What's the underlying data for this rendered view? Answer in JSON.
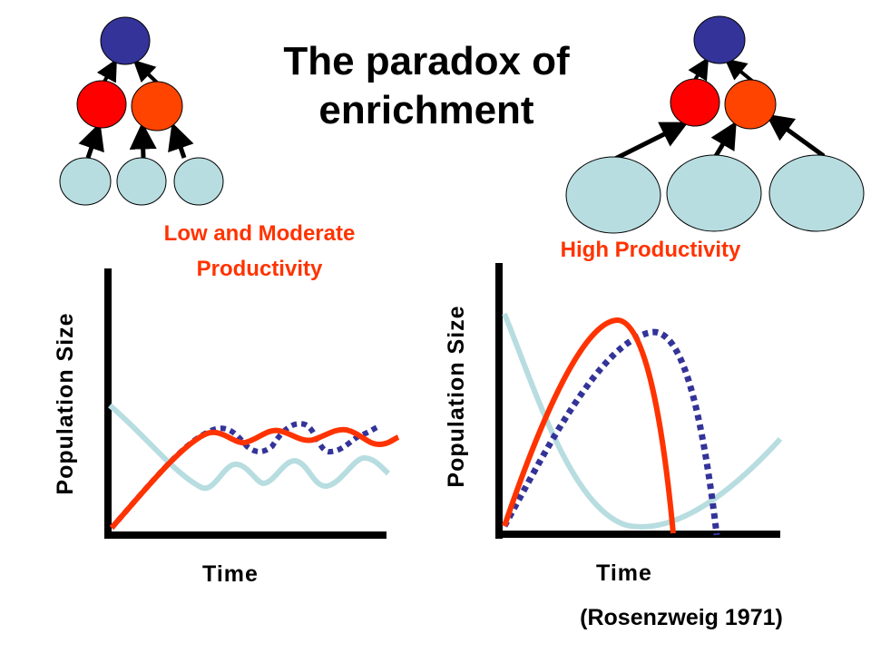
{
  "title": {
    "line1": "The paradox of",
    "line2": "enrichment"
  },
  "left_panel": {
    "subtitle_line1": "Low and Moderate",
    "subtitle_line2": "Productivity",
    "ylabel": "Population Size",
    "xlabel": "Time"
  },
  "right_panel": {
    "subtitle": "High Productivity",
    "ylabel": "Population Size",
    "xlabel": "Time"
  },
  "citation": "(Rosenzweig 1971)",
  "colors": {
    "predator_node": "#333399",
    "consumer_node_a": "#ff0000",
    "consumer_node_b": "#ff4400",
    "resource_node": "#b7dde0",
    "consumer_curve": "#ff3300",
    "predator_curve": "#333399",
    "resource_curve": "#b7dde0",
    "subtitle": "#ff3300",
    "axis": "#000000"
  },
  "food_webs": [
    {
      "panel": "left",
      "resource_size": "small"
    },
    {
      "panel": "right",
      "resource_size": "large"
    }
  ]
}
